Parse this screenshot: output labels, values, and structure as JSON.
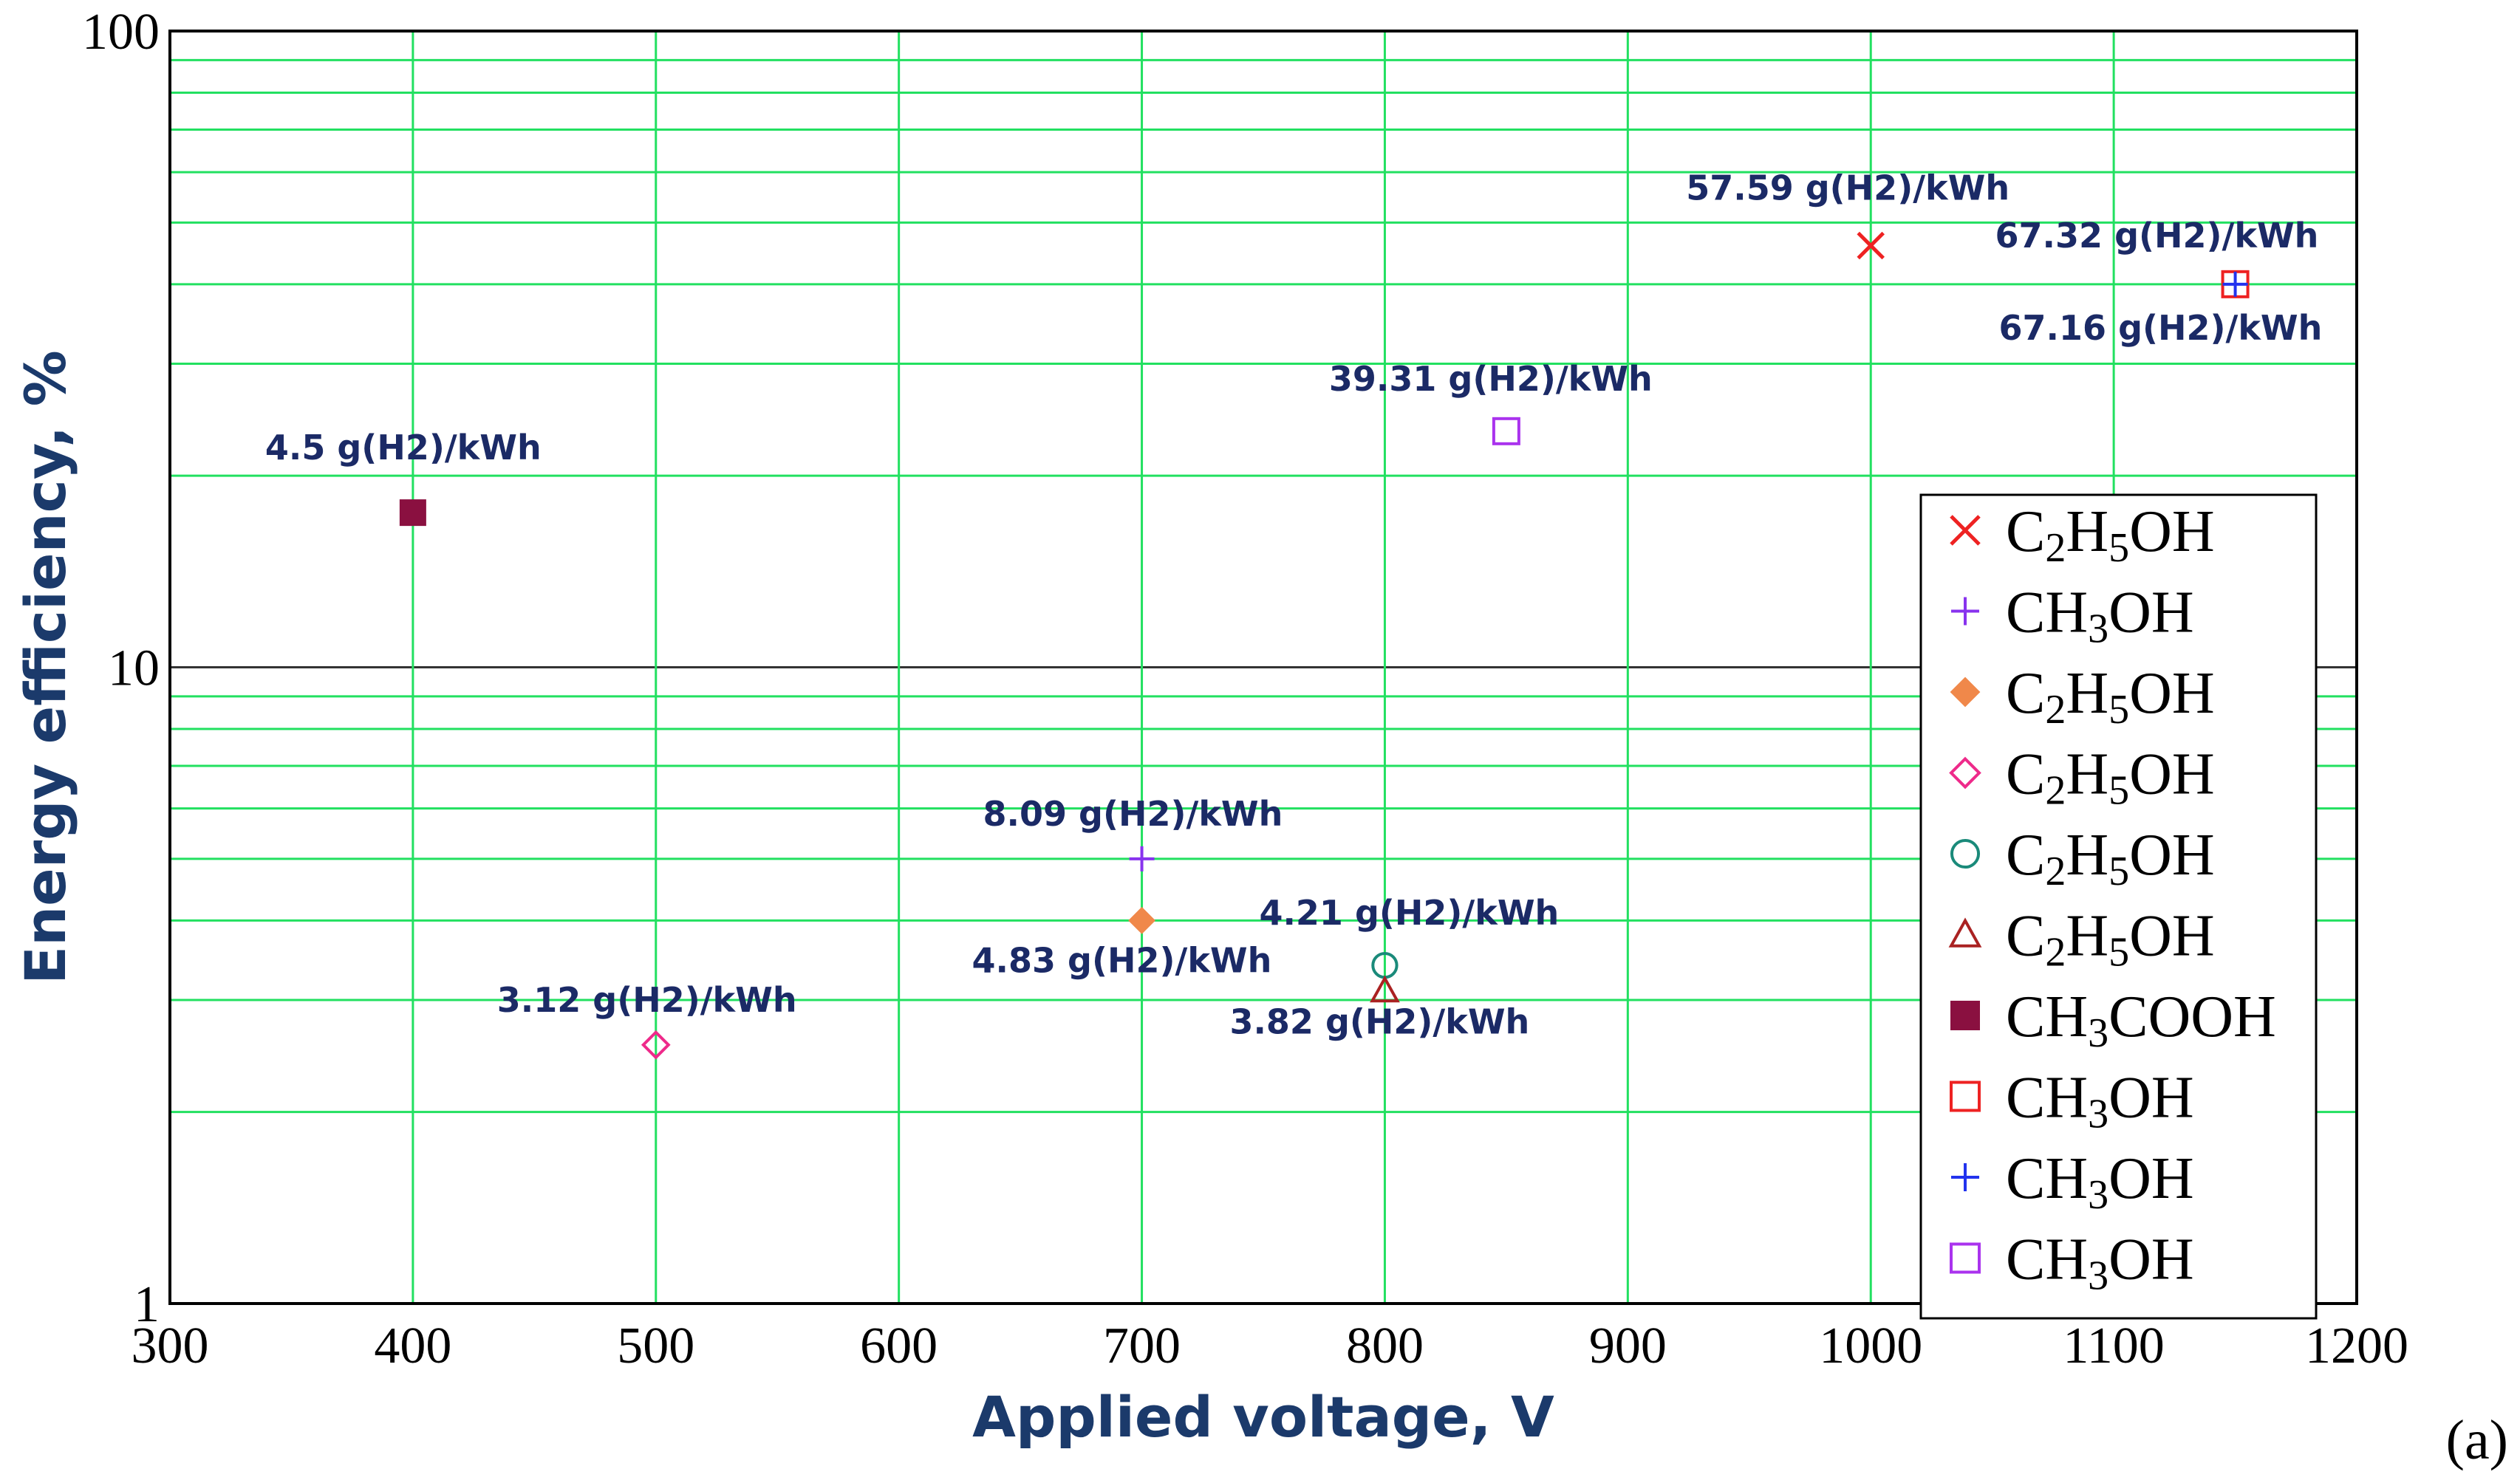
{
  "chart_data": {
    "type": "scatter",
    "xlabel": "Applied voltage, V",
    "ylabel": "Energy efficiency, %",
    "xlim": [
      300,
      1200
    ],
    "ylim": [
      1,
      100
    ],
    "yscale": "log",
    "xticks": [
      "300",
      "400",
      "500",
      "600",
      "700",
      "800",
      "900",
      "1000",
      "1100",
      "1200"
    ],
    "yticks": [
      "1",
      "10",
      "100"
    ],
    "grid": true,
    "grid_color": "#22e060",
    "legend_position": "lower-right",
    "panel_label": "(a)",
    "series": [
      {
        "name": "C2H5OH",
        "name_parts": [
          [
            "C",
            ""
          ],
          [
            "2",
            "sub"
          ],
          [
            "H",
            ""
          ],
          [
            "5",
            "sub"
          ],
          [
            "OH",
            ""
          ]
        ],
        "marker": "x",
        "color": "#ee2222",
        "points": [
          {
            "x": 1000,
            "y": 46,
            "label": "57.59 g(H2)/kWh"
          }
        ]
      },
      {
        "name": "CH3OH",
        "name_parts": [
          [
            "CH",
            ""
          ],
          [
            "3",
            "sub"
          ],
          [
            "OH",
            ""
          ]
        ],
        "marker": "plus",
        "color": "#8833ee",
        "points": [
          {
            "x": 700,
            "y": 5.0,
            "label": "8.09 g(H2)/kWh"
          }
        ]
      },
      {
        "name": "C2H5OH",
        "name_parts": [
          [
            "C",
            ""
          ],
          [
            "2",
            "sub"
          ],
          [
            "H",
            ""
          ],
          [
            "5",
            "sub"
          ],
          [
            "OH",
            ""
          ]
        ],
        "marker": "diamond-filled",
        "color": "#f0884a",
        "points": [
          {
            "x": 700,
            "y": 4.0,
            "label": "4.83 g(H2)/kWh"
          }
        ]
      },
      {
        "name": "C2H5OH",
        "name_parts": [
          [
            "C",
            ""
          ],
          [
            "2",
            "sub"
          ],
          [
            "H",
            ""
          ],
          [
            "5",
            "sub"
          ],
          [
            "OH",
            ""
          ]
        ],
        "marker": "diamond-open",
        "color": "#ee2a8a",
        "points": [
          {
            "x": 500,
            "y": 2.55,
            "label": "3.12 g(H2)/kWh"
          }
        ]
      },
      {
        "name": "C2H5OH",
        "name_parts": [
          [
            "C",
            ""
          ],
          [
            "2",
            "sub"
          ],
          [
            "H",
            ""
          ],
          [
            "5",
            "sub"
          ],
          [
            "OH",
            ""
          ]
        ],
        "marker": "circle-open",
        "color": "#1a8a7a",
        "points": [
          {
            "x": 800,
            "y": 3.4,
            "label": "4.21 g(H2)/kWh"
          }
        ]
      },
      {
        "name": "C2H5OH",
        "name_parts": [
          [
            "C",
            ""
          ],
          [
            "2",
            "sub"
          ],
          [
            "H",
            ""
          ],
          [
            "5",
            "sub"
          ],
          [
            "OH",
            ""
          ]
        ],
        "marker": "triangle-open",
        "color": "#aa2222",
        "points": [
          {
            "x": 800,
            "y": 3.1,
            "label": "3.82 g(H2)/kWh"
          }
        ]
      },
      {
        "name": "CH3COOH",
        "name_parts": [
          [
            "CH",
            ""
          ],
          [
            "3",
            "sub"
          ],
          [
            "COOH",
            ""
          ]
        ],
        "marker": "square-filled",
        "color": "#8a1040",
        "points": [
          {
            "x": 400,
            "y": 17.5,
            "label": "4.5 g(H2)/kWh"
          }
        ]
      },
      {
        "name": "CH3OH",
        "name_parts": [
          [
            "CH",
            ""
          ],
          [
            "3",
            "sub"
          ],
          [
            "OH",
            ""
          ]
        ],
        "marker": "square-open",
        "color": "#ee2222",
        "points": [
          {
            "x": 1150,
            "y": 40,
            "label": "67.16 g(H2)/kWh"
          }
        ]
      },
      {
        "name": "CH3OH",
        "name_parts": [
          [
            "CH",
            ""
          ],
          [
            "3",
            "sub"
          ],
          [
            "OH",
            ""
          ]
        ],
        "marker": "plus",
        "color": "#2233ee",
        "points": [
          {
            "x": 1150,
            "y": 40,
            "label": "67.32 g(H2)/kWh"
          }
        ]
      },
      {
        "name": "CH3OH",
        "name_parts": [
          [
            "CH",
            ""
          ],
          [
            "3",
            "sub"
          ],
          [
            "OH",
            ""
          ]
        ],
        "marker": "square-open",
        "color": "#aa33ee",
        "points": [
          {
            "x": 850,
            "y": 23.5,
            "label": "39.31 g(H2)/kWh"
          }
        ]
      }
    ]
  }
}
